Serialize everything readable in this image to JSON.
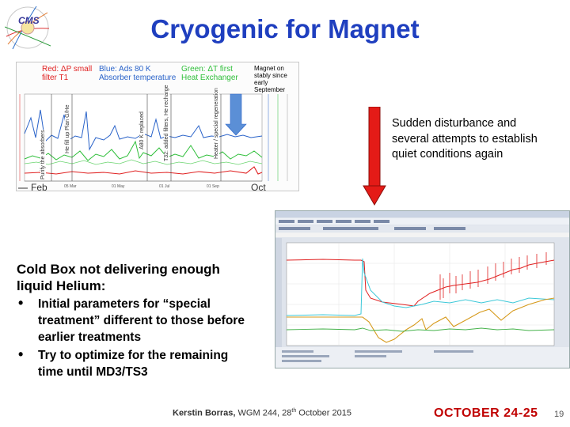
{
  "slide": {
    "title": "Cryogenic for Magnet",
    "page_number": "19"
  },
  "top_chart": {
    "legend_red": "Red: ΔP small filter T1",
    "legend_blue": "Blue: Ads 80 K Absorber temperature",
    "legend_green": "Green: ΔT first Heat Exchanger",
    "legend_magnet": "Magnet on stably since early September",
    "vertical_labels": [
      "Purify the absorbers",
      "He fill up Plan G/He",
      "A80 K replaced",
      "T32: added filters, He recharge",
      "Heater / special regeneration"
    ],
    "x_start": "Feb",
    "x_end": "Oct",
    "colors": {
      "red": "#e02020",
      "blue": "#2a63c9",
      "green": "#2fbf3a",
      "legend_magnet": "#000000"
    }
  },
  "annotation": {
    "text": "Sudden disturbance and several  attempts to establish quiet conditions again",
    "arrow_color": "#e41b17"
  },
  "left_text": {
    "heading": "Cold Box not delivering enough liquid Helium:",
    "bullets": [
      "Initial parameters for “special treatment” different to those before earlier treatments",
      "Try to optimize for the remaining time until MD3/TS3"
    ]
  },
  "footer": {
    "author": "Kerstin Borras,",
    "meeting": " WGM 244, 28",
    "ordinal": "th",
    "date_text": "  October  2015",
    "banner": "OCTOBER 24-25"
  }
}
